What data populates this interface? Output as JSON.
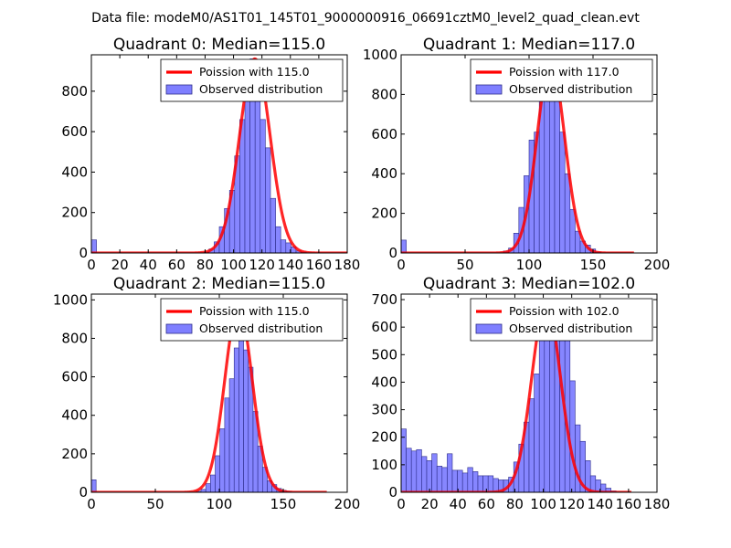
{
  "figure": {
    "suptitle": "Data file: modeM0/AS1T01_145T01_9000000916_06691cztM0_level2_quad_clean.evt"
  },
  "colors": {
    "poisson": "#ff0000",
    "observed_fill": "#7f7fff",
    "observed_edge": "#2c2c8a"
  },
  "chart_data": [
    {
      "type": "bar",
      "title": "Quadrant 0: Median=115.0",
      "xlim": [
        0,
        180
      ],
      "ylim": [
        0,
        980
      ],
      "xticks": [
        0,
        20,
        40,
        60,
        80,
        100,
        120,
        140,
        160,
        180
      ],
      "xtick_labels": [
        "0",
        "20",
        "40",
        "60",
        "80",
        "100",
        "120",
        "140",
        "160",
        "180"
      ],
      "yticks": [
        0,
        200,
        400,
        600,
        800
      ],
      "ytick_labels": [
        "0",
        "200",
        "400",
        "600",
        "800"
      ],
      "bin_width": 3.6,
      "bins_x": [
        0,
        79.2,
        82.8,
        86.4,
        90,
        93.6,
        97.2,
        100.8,
        104.4,
        108,
        111.6,
        115.2,
        118.8,
        122.4,
        126,
        129.6,
        133.2,
        136.8,
        140.4,
        144,
        147.6
      ],
      "bins_y": [
        65,
        5,
        20,
        55,
        130,
        220,
        310,
        480,
        660,
        920,
        960,
        900,
        660,
        520,
        270,
        130,
        65,
        50,
        30,
        10,
        5
      ],
      "poisson": {
        "mean": 115.0,
        "peak": 960,
        "x_start": 0,
        "x_end": 180
      },
      "legend": {
        "location": "upper right",
        "entries": [
          "Poission with 115.0",
          "Observed distribution"
        ]
      }
    },
    {
      "type": "bar",
      "title": "Quadrant 1: Median=117.0",
      "xlim": [
        0,
        200
      ],
      "ylim": [
        0,
        1000
      ],
      "xticks": [
        0,
        50,
        100,
        150,
        200
      ],
      "xtick_labels": [
        "0",
        "50",
        "100",
        "150",
        "200"
      ],
      "yticks": [
        0,
        200,
        400,
        600,
        800,
        1000
      ],
      "ytick_labels": [
        "0",
        "200",
        "400",
        "600",
        "800",
        "1000"
      ],
      "bin_width": 4,
      "bins_x": [
        0,
        80,
        84,
        88,
        92,
        96,
        100,
        104,
        108,
        112,
        116,
        120,
        124,
        128,
        132,
        136,
        140,
        144,
        148,
        152
      ],
      "bins_y": [
        65,
        10,
        25,
        100,
        230,
        390,
        570,
        610,
        780,
        960,
        940,
        790,
        610,
        400,
        220,
        110,
        60,
        40,
        20,
        5
      ],
      "poisson": {
        "mean": 117.0,
        "peak": 965,
        "x_start": 0,
        "x_end": 182
      },
      "legend": {
        "location": "upper right",
        "entries": [
          "Poission with 117.0",
          "Observed distribution"
        ]
      }
    },
    {
      "type": "bar",
      "title": "Quadrant 2: Median=115.0",
      "xlim": [
        0,
        200
      ],
      "ylim": [
        0,
        1030
      ],
      "xticks": [
        0,
        50,
        100,
        150,
        200
      ],
      "xtick_labels": [
        "0",
        "50",
        "100",
        "150",
        "200"
      ],
      "yticks": [
        0,
        200,
        400,
        600,
        800,
        1000
      ],
      "ytick_labels": [
        "0",
        "200",
        "400",
        "600",
        "800",
        "1000"
      ],
      "bin_width": 3.7,
      "bins_x": [
        0,
        82,
        85.7,
        89.4,
        93.1,
        96.8,
        100.5,
        104.2,
        107.9,
        111.6,
        115.3,
        119,
        122.7,
        126.4,
        130.1,
        133.8,
        137.5,
        141.2,
        144.9,
        148.6,
        152.3
      ],
      "bins_y": [
        65,
        5,
        15,
        45,
        90,
        190,
        330,
        490,
        590,
        750,
        790,
        740,
        650,
        420,
        240,
        130,
        60,
        40,
        20,
        10,
        5
      ],
      "poisson": {
        "mean": 115.0,
        "peak": 965,
        "x_start": 0,
        "x_end": 184
      },
      "legend": {
        "location": "upper right",
        "entries": [
          "Poission with 115.0",
          "Observed distribution"
        ]
      }
    },
    {
      "type": "bar",
      "title": "Quadrant 3: Median=102.0",
      "xlim": [
        0,
        180
      ],
      "ylim": [
        0,
        720
      ],
      "xticks": [
        0,
        20,
        40,
        60,
        80,
        100,
        120,
        140,
        160,
        180
      ],
      "xtick_labels": [
        "0",
        "20",
        "40",
        "60",
        "80",
        "100",
        "120",
        "140",
        "160",
        "180"
      ],
      "yticks": [
        0,
        100,
        200,
        300,
        400,
        500,
        600,
        700
      ],
      "ytick_labels": [
        "0",
        "100",
        "200",
        "300",
        "400",
        "500",
        "600",
        "700"
      ],
      "bin_width": 3.6,
      "bins_x": [
        0,
        3.6,
        7.2,
        10.8,
        14.4,
        18,
        21.6,
        25.2,
        28.8,
        32.4,
        36,
        39.6,
        43.2,
        46.8,
        50.4,
        54,
        57.6,
        61.2,
        64.8,
        68.4,
        72,
        75.6,
        79.2,
        82.8,
        86.4,
        90,
        93.6,
        97.2,
        100.8,
        104.4,
        108,
        111.6,
        115.2,
        118.8,
        122.4,
        126,
        129.6,
        133.2,
        136.8,
        140.4,
        144,
        147.6
      ],
      "bins_y": [
        230,
        160,
        150,
        155,
        130,
        115,
        140,
        95,
        90,
        140,
        80,
        80,
        70,
        90,
        75,
        60,
        60,
        60,
        50,
        45,
        45,
        55,
        110,
        175,
        255,
        340,
        430,
        585,
        610,
        680,
        650,
        605,
        650,
        405,
        245,
        185,
        115,
        60,
        45,
        30,
        15,
        5
      ],
      "poisson": {
        "mean": 102.0,
        "peak": 690,
        "x_start": 0,
        "x_end": 162
      },
      "legend": {
        "location": "upper right",
        "entries": [
          "Poission with 102.0",
          "Observed distribution"
        ]
      }
    }
  ]
}
